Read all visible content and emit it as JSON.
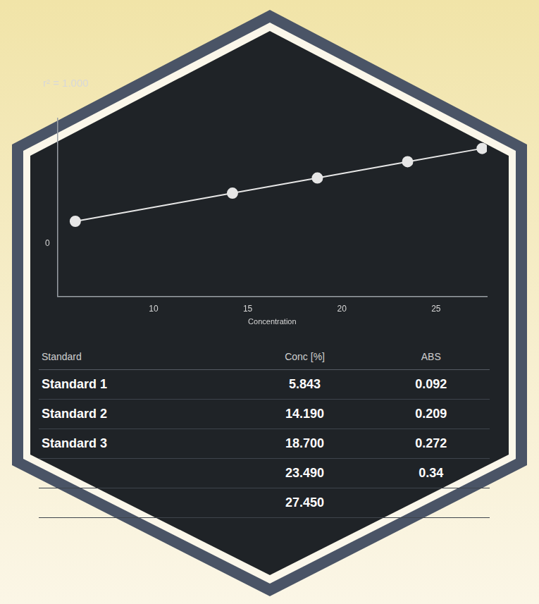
{
  "chart_data": {
    "type": "line",
    "title": "r² = 1.000",
    "x_label": "Concentration",
    "x": [
      5.843,
      14.19,
      18.7,
      23.49,
      27.45
    ],
    "values": [
      0.092,
      0.209,
      0.272,
      0.34,
      0.395
    ],
    "color": "#e6e6e6",
    "marker": "circle",
    "grid": false,
    "xlim": [
      4.9,
      27.7
    ],
    "xticks": [
      10,
      15,
      20,
      25
    ],
    "ylim": [
      -0.22,
      0.52
    ],
    "yticks": [
      0
    ]
  },
  "table": {
    "columns": [
      "Standard",
      "Conc [%]",
      "ABS"
    ],
    "rows": [
      [
        "Standard 1",
        "5.843",
        "0.092"
      ],
      [
        "Standard 2",
        "14.190",
        "0.209"
      ],
      [
        "Standard 3",
        "18.700",
        "0.272"
      ],
      [
        null,
        "23.490",
        "0.34"
      ],
      [
        null,
        "27.450",
        null
      ]
    ]
  }
}
